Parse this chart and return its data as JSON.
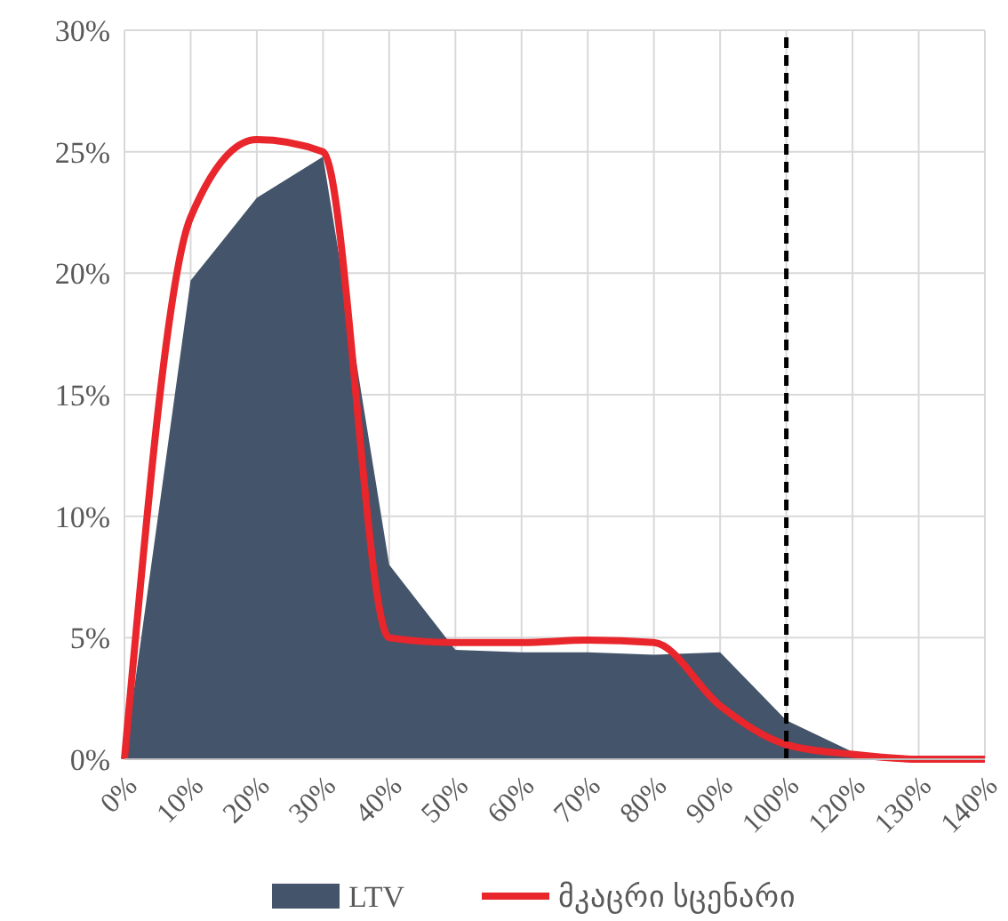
{
  "chart_data": {
    "type": "area",
    "categories": [
      "0%",
      "10%",
      "20%",
      "30%",
      "40%",
      "50%",
      "60%",
      "70%",
      "80%",
      "90%",
      "100%",
      "120%",
      "130%",
      "140%"
    ],
    "series": [
      {
        "name": "LTV",
        "color": "#44546a",
        "values": [
          0,
          19.7,
          23.1,
          24.8,
          8,
          4.5,
          4.4,
          4.4,
          4.3,
          4.4,
          1.6,
          0.3,
          0,
          0
        ]
      },
      {
        "name": "მკაცრი სცენარი",
        "type": "line",
        "color": "#e8262b",
        "values": [
          0,
          22.3,
          25.5,
          25.0,
          5.0,
          4.8,
          4.8,
          4.9,
          4.8,
          2.2,
          0.6,
          0.2,
          0,
          0
        ]
      }
    ],
    "ylim": [
      0,
      30
    ],
    "yticks": [
      {
        "value": 0,
        "label": "0%"
      },
      {
        "value": 5,
        "label": "5%"
      },
      {
        "value": 10,
        "label": "10%"
      },
      {
        "value": 15,
        "label": "15%"
      },
      {
        "value": 20,
        "label": "20%"
      },
      {
        "value": 25,
        "label": "25%"
      },
      {
        "value": 30,
        "label": "30%"
      }
    ],
    "grid": true,
    "legend": "bottom",
    "line_style": "solid",
    "ref_lines": [
      {
        "axis": "x",
        "value": "100%",
        "color": "#000000",
        "line_style": "dashed"
      }
    ]
  }
}
